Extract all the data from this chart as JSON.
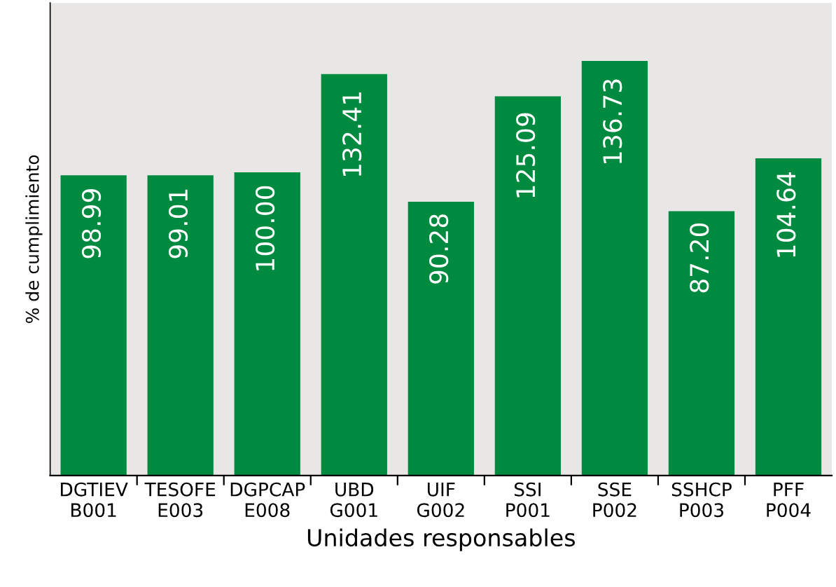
{
  "chart_data": {
    "type": "bar",
    "categories": [
      "DGTIEV\nB001",
      "TESOFE\nE003",
      "DGPCAP\nE008",
      "UBD\nG001",
      "UIF\nG002",
      "SSI\nP001",
      "SSE\nP002",
      "SSHCP\nP003",
      "PFF\nP004"
    ],
    "values": [
      98.99,
      99.01,
      100.0,
      132.41,
      90.28,
      125.09,
      136.73,
      87.2,
      104.64
    ],
    "value_labels": [
      "98.99",
      "99.01",
      "100.00",
      "132.41",
      "90.28",
      "125.09",
      "136.73",
      "87.20",
      "104.64"
    ],
    "color": "#008a40",
    "ylabel": "% de cumplimiento",
    "xlabel": "Unidades responsables",
    "grid": false,
    "legend": false
  }
}
